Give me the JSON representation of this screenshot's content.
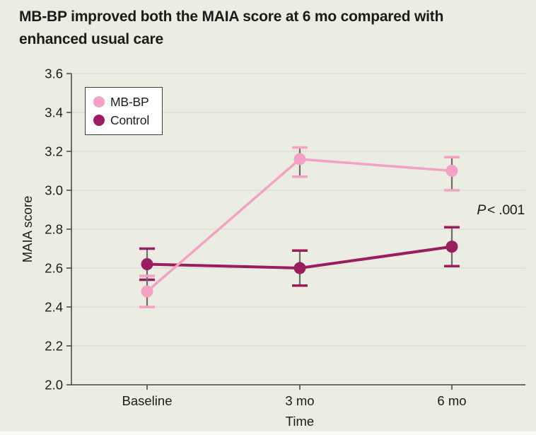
{
  "figure": {
    "title": "MB-BP improved both the MAIA score at 6 mo compared with enhanced usual care"
  },
  "legend": {
    "items": [
      {
        "label": "MB-BP",
        "color": "#F5A1C5"
      },
      {
        "label": "Control",
        "color": "#9C1C60"
      }
    ]
  },
  "annotation": {
    "p": "P",
    "rest": "< .001"
  },
  "chart_data": {
    "type": "line",
    "categories": [
      "Baseline",
      "3 mo",
      "6 mo"
    ],
    "series": [
      {
        "name": "MB-BP",
        "color": "#F5A1C5",
        "values": [
          2.48,
          3.16,
          3.1
        ],
        "ci_low": [
          2.4,
          3.07,
          3.0
        ],
        "ci_high": [
          2.56,
          3.22,
          3.17
        ]
      },
      {
        "name": "Control",
        "color": "#9C1C60",
        "values": [
          2.62,
          2.6,
          2.71
        ],
        "ci_low": [
          2.54,
          2.51,
          2.61
        ],
        "ci_high": [
          2.7,
          2.69,
          2.81
        ]
      }
    ],
    "xlabel": "Time",
    "ylabel": "MAIA score",
    "ylim": [
      2.0,
      3.6
    ],
    "ytick_step": 0.2,
    "yticks": [
      "2.0",
      "2.2",
      "2.4",
      "2.6",
      "2.8",
      "3.0",
      "3.2",
      "3.4",
      "3.6"
    ],
    "grid": true,
    "legend_position": "top-left",
    "annotation": "P < .001",
    "error_bar_stem_color": "#6E6E64"
  },
  "colors": {
    "background": "#ECEDE2",
    "axis": "#45453F",
    "gridline": "#DDDFD2",
    "text": "#1C1C1A",
    "legend_border": "#3F3F39",
    "legend_bg": "#FFFFFF"
  }
}
